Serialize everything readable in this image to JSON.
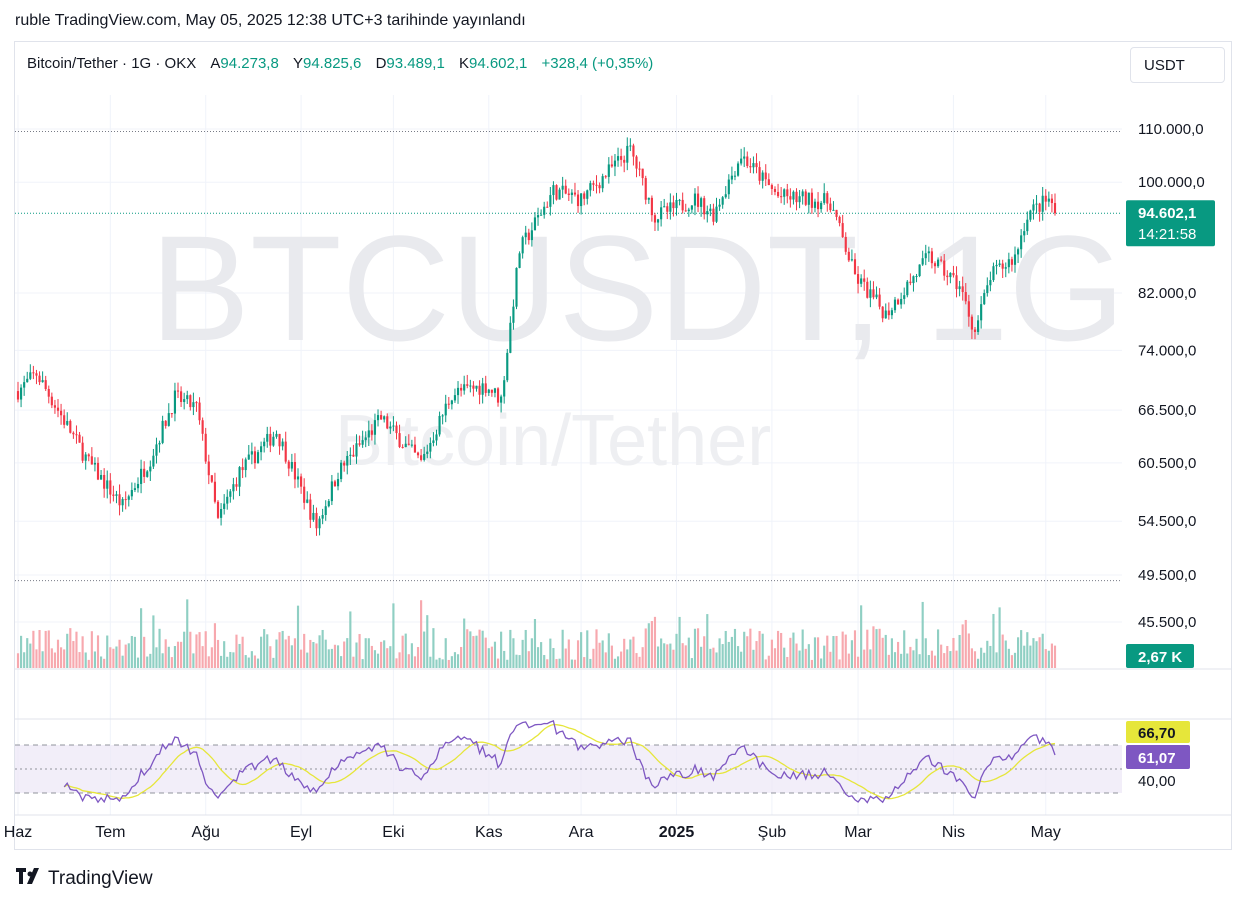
{
  "caption": "ruble TradingView.com, May 05, 2025 12:38 UTC+3 tarihinde yayınlandı",
  "header": {
    "symbol": "Bitcoin/Tether · 1G · OKX",
    "open_label": "A",
    "open": "94.273,8",
    "high_label": "Y",
    "high": "94.825,6",
    "low_label": "D",
    "low": "93.489,1",
    "close_label": "K",
    "close": "94.602,1",
    "change": "+328,4 (+0,35%)"
  },
  "currency_button": "USDT",
  "watermark": {
    "main": "BTCUSDT, 1G",
    "sub": "Bitcoin/Tether"
  },
  "footer": {
    "brand": "TradingView"
  },
  "colors": {
    "up": "#089981",
    "down": "#f23645",
    "vol_up": "#8fcfc3",
    "vol_down": "#f7a8ae",
    "rsi": "#7e57c2",
    "rsi_ma": "#e6e63a",
    "rsi_band": "#ede7f6"
  },
  "chart_data": {
    "type": "candlestick",
    "log_scale": true,
    "price_axis_ticks": [
      "110.000,0",
      "100.000,0",
      "82.000,0",
      "74.000,0",
      "66.500,0",
      "60.500,0",
      "54.500,0",
      "49.500,0",
      "45.500,0"
    ],
    "price_axis_values": [
      110000,
      100000,
      82000,
      74000,
      66500,
      60500,
      54500,
      49500,
      45500
    ],
    "last_price_label": "94.602,1",
    "last_price": 94602.1,
    "countdown_label": "14:21:58",
    "reference_lines": [
      109500,
      94602.1,
      49000
    ],
    "volume_label": "2,67 K",
    "time_axis": [
      "Haz",
      "Tem",
      "Ağu",
      "Eyl",
      "Eki",
      "Kas",
      "Ara",
      "2025",
      "Şub",
      "Mar",
      "Nis",
      "May"
    ],
    "price_path": [
      [
        "2024-06-01",
        68800
      ],
      [
        "2024-06-07",
        71000
      ],
      [
        "2024-06-14",
        66500
      ],
      [
        "2024-06-24",
        60500
      ],
      [
        "2024-07-05",
        56000
      ],
      [
        "2024-07-14",
        61000
      ],
      [
        "2024-07-22",
        68000
      ],
      [
        "2024-07-29",
        66800
      ],
      [
        "2024-08-05",
        54500
      ],
      [
        "2024-08-12",
        59500
      ],
      [
        "2024-08-24",
        64000
      ],
      [
        "2024-09-06",
        54000
      ],
      [
        "2024-09-13",
        59500
      ],
      [
        "2024-09-27",
        65500
      ],
      [
        "2024-10-10",
        60500
      ],
      [
        "2024-10-20",
        68500
      ],
      [
        "2024-10-31",
        69500
      ],
      [
        "2024-11-05",
        67800
      ],
      [
        "2024-11-11",
        88500
      ],
      [
        "2024-11-22",
        98500
      ],
      [
        "2024-12-01",
        97000
      ],
      [
        "2024-12-17",
        106000
      ],
      [
        "2024-12-25",
        94000
      ],
      [
        "2025-01-07",
        97000
      ],
      [
        "2025-01-13",
        94500
      ],
      [
        "2025-01-22",
        105000
      ],
      [
        "2025-02-03",
        97500
      ],
      [
        "2025-02-20",
        96500
      ],
      [
        "2025-02-28",
        84500
      ],
      [
        "2025-03-10",
        79000
      ],
      [
        "2025-03-24",
        87500
      ],
      [
        "2025-04-03",
        83000
      ],
      [
        "2025-04-08",
        76500
      ],
      [
        "2025-04-13",
        84500
      ],
      [
        "2025-04-21",
        87500
      ],
      [
        "2025-04-25",
        94500
      ],
      [
        "2025-05-02",
        97000
      ],
      [
        "2025-05-04",
        94600
      ]
    ],
    "rsi_panel": {
      "levels": [
        70,
        50,
        30
      ],
      "ticks": [
        "40,00"
      ],
      "rsi_label": "61,07",
      "rsi_value": 61.07,
      "rsi_ma_label": "66,70",
      "rsi_ma_value": 66.7
    }
  }
}
